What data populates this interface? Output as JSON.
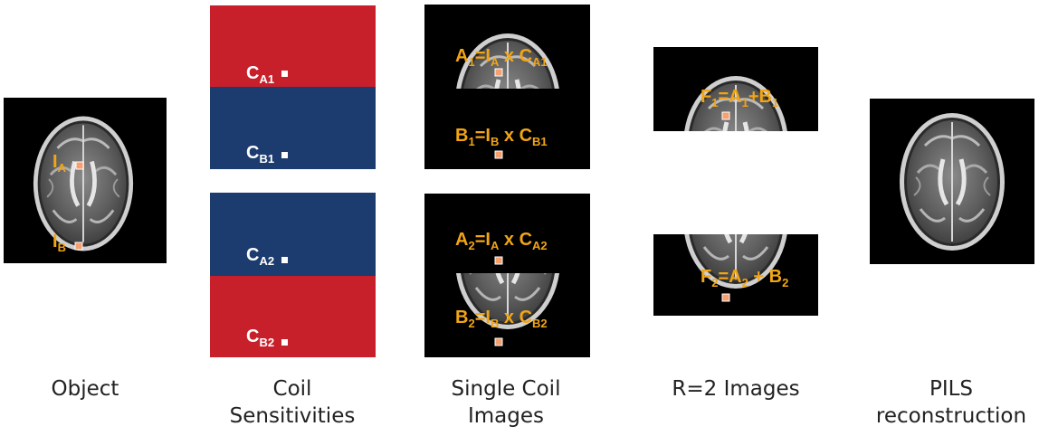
{
  "colors": {
    "coil_red": "#c8202b",
    "coil_blue": "#1c3b6e",
    "label_orange": "#f2a515",
    "marker_fill": "#f4a070"
  },
  "captions": {
    "object": "Object",
    "coil_line1": "Coil",
    "coil_line2": "Sensitivities",
    "single_line1": "Single Coil",
    "single_line2": "Images",
    "r2": "R=2 Images",
    "pils_line1": "PILS",
    "pils_line2": "reconstruction"
  },
  "object_labels": {
    "a_main": "I",
    "a_sub": "A",
    "b_main": "I",
    "b_sub": "B"
  },
  "coil_labels": {
    "c_main": "C",
    "a1": "A1",
    "b1": "B1",
    "a2": "A2",
    "b2": "B2"
  },
  "single_coil": {
    "a1": {
      "p1": "A",
      "s1": "1",
      "eq": "=I",
      "s2": "A",
      "op": " x C",
      "s3": "A1"
    },
    "b1": {
      "p1": "B",
      "s1": "1",
      "eq": "=I",
      "s2": "B",
      "op": " x C",
      "s3": "B1"
    },
    "a2": {
      "p1": "A",
      "s1": "2",
      "eq": "=I",
      "s2": "A",
      "op": " x C",
      "s3": "A2"
    },
    "b2": {
      "p1": "B",
      "s1": "2",
      "eq": "=I",
      "s2": "B",
      "op": " x C",
      "s3": "B2"
    }
  },
  "r2_images": {
    "f1": {
      "p1": "F",
      "s1": "1",
      "eq": "=A",
      "s2": "1",
      "op": "+B",
      "s3": "1"
    },
    "f2": {
      "p1": "F",
      "s1": "2",
      "eq": "=A",
      "s2": "2",
      "op": " + B",
      "s3": "2"
    }
  }
}
